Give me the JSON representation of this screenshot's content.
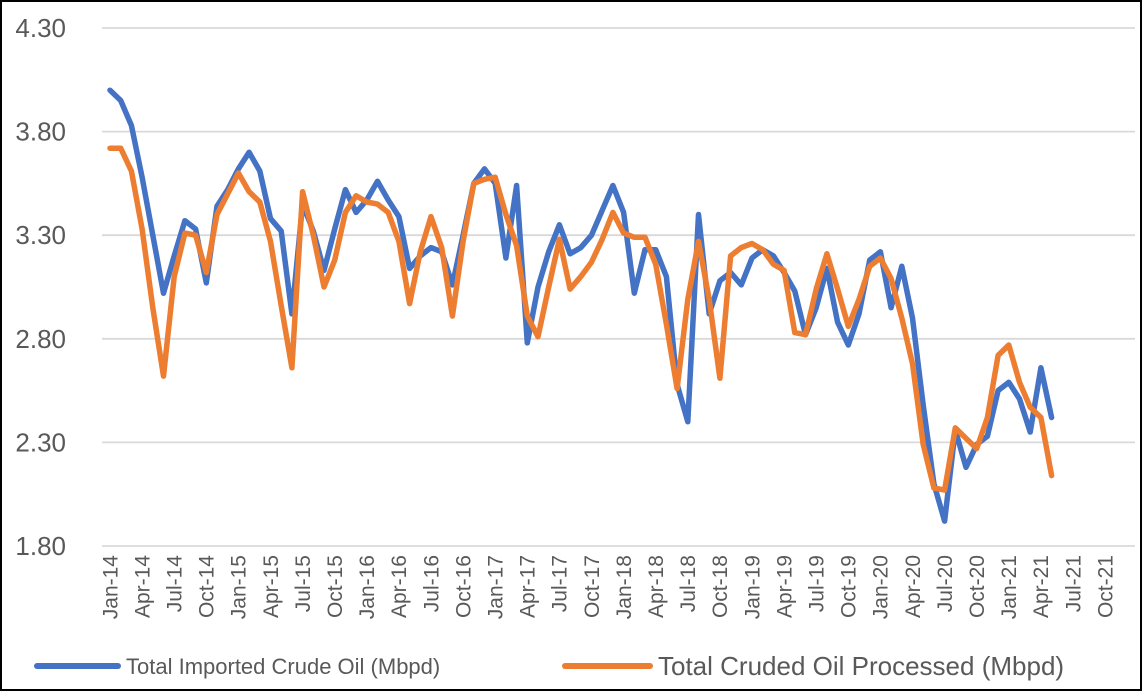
{
  "chart_data": {
    "type": "line",
    "title": "",
    "grid": "horizontal",
    "legend_position": "bottom",
    "ylim": [
      1.8,
      4.3
    ],
    "y_ticks": [
      4.3,
      3.8,
      3.3,
      2.8,
      2.3,
      1.8
    ],
    "x_tick_labels": [
      "Jan-14",
      "Apr-14",
      "Jul-14",
      "Oct-14",
      "Jan-15",
      "Apr-15",
      "Jul-15",
      "Oct-15",
      "Jan-16",
      "Apr-16",
      "Jul-16",
      "Oct-16",
      "Jan-17",
      "Apr-17",
      "Jul-17",
      "Oct-17",
      "Jan-18",
      "Apr-18",
      "Jul-18",
      "Oct-18",
      "Jan-19",
      "Apr-19",
      "Jul-19",
      "Oct-19",
      "Jan-20",
      "Apr-20",
      "Jul-20",
      "Oct-20",
      "Jan-21",
      "Apr-21",
      "Jul-21",
      "Oct-21"
    ],
    "months_per_x_tick": 3,
    "first_data_month": "Jan-14",
    "last_data_month": "May-21",
    "n_points": 89,
    "series": [
      {
        "name": "Total Imported Crude Oil (Mbpd)",
        "color": "#4472C4",
        "values": [
          4.0,
          3.95,
          3.83,
          3.58,
          3.3,
          3.02,
          3.2,
          3.37,
          3.33,
          3.07,
          3.44,
          3.52,
          3.62,
          3.7,
          3.61,
          3.38,
          3.32,
          2.92,
          3.45,
          3.32,
          3.13,
          3.33,
          3.52,
          3.41,
          3.47,
          3.56,
          3.47,
          3.39,
          3.14,
          3.2,
          3.24,
          3.22,
          3.06,
          3.3,
          3.55,
          3.62,
          3.55,
          3.19,
          3.54,
          2.78,
          3.05,
          3.22,
          3.35,
          3.21,
          3.24,
          3.3,
          3.42,
          3.54,
          3.41,
          3.02,
          3.23,
          3.23,
          3.1,
          2.58,
          2.4,
          3.4,
          2.92,
          3.08,
          3.12,
          3.06,
          3.19,
          3.23,
          3.2,
          3.12,
          3.03,
          2.82,
          2.95,
          3.14,
          2.88,
          2.77,
          2.92,
          3.18,
          3.22,
          2.95,
          3.15,
          2.9,
          2.48,
          2.1,
          1.92,
          2.36,
          2.18,
          2.29,
          2.33,
          2.55,
          2.59,
          2.51,
          2.35,
          2.66,
          2.42
        ]
      },
      {
        "name": "Total Cruded Oil Processed (Mbpd)",
        "color": "#ED7D31",
        "values": [
          3.72,
          3.72,
          3.61,
          3.33,
          2.95,
          2.62,
          3.1,
          3.31,
          3.3,
          3.12,
          3.4,
          3.5,
          3.6,
          3.51,
          3.46,
          3.27,
          2.96,
          2.66,
          3.51,
          3.3,
          3.05,
          3.18,
          3.41,
          3.49,
          3.46,
          3.45,
          3.41,
          3.27,
          2.97,
          3.22,
          3.39,
          3.24,
          2.91,
          3.27,
          3.55,
          3.57,
          3.58,
          3.4,
          3.25,
          2.91,
          2.81,
          3.05,
          3.28,
          3.04,
          3.1,
          3.17,
          3.28,
          3.41,
          3.31,
          3.29,
          3.29,
          3.16,
          2.87,
          2.56,
          2.99,
          3.27,
          2.99,
          2.61,
          3.2,
          3.24,
          3.26,
          3.23,
          3.16,
          3.13,
          2.83,
          2.82,
          3.04,
          3.21,
          3.04,
          2.86,
          2.99,
          3.15,
          3.19,
          3.09,
          2.9,
          2.68,
          2.29,
          2.08,
          2.07,
          2.37,
          2.32,
          2.27,
          2.42,
          2.72,
          2.77,
          2.59,
          2.47,
          2.42,
          2.14
        ]
      }
    ]
  },
  "style": {
    "gridline_color": "#D9D9D9",
    "tick_text_color": "#595959",
    "legend_text_color": "#595959",
    "background_color": "#FFFFFF",
    "border_color": "#000000"
  }
}
